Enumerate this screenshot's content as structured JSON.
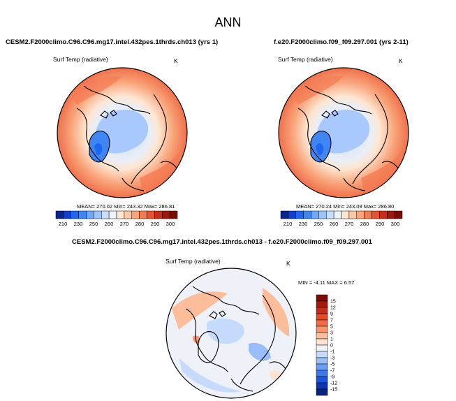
{
  "figure": {
    "title": "ANN",
    "panels": [
      {
        "title": "CESM2.F2000climo.C96.C96.mg17.intel.432pes.1thrds.ch013 (yrs 1)",
        "variable": "Surf Temp (radiative)",
        "units": "K",
        "stats": "MEAN= 270.02  Min= 243.32  Max= 286.81",
        "colorbar": {
          "levels": [
            "210",
            "230",
            "250",
            "260",
            "270",
            "280",
            "290",
            "300"
          ],
          "colors": [
            "#08268f",
            "#0d3fd1",
            "#1f66f0",
            "#3f86f5",
            "#6ea8fa",
            "#9cc6fb",
            "#c8defc",
            "#eef3f8",
            "#fde6d2",
            "#fcc7a4",
            "#f9a47a",
            "#f47a52",
            "#e9522f",
            "#c92d18",
            "#9e160c",
            "#7a0b05"
          ]
        }
      },
      {
        "title": "f.e20.F2000climo.f09_f09.297.001 (yrs 2-11)",
        "variable": "Surf Temp (radiative)",
        "units": "K",
        "stats": "MEAN= 270.24  Min= 243.09  Max= 286.80",
        "colorbar": {
          "levels": [
            "210",
            "230",
            "250",
            "260",
            "270",
            "280",
            "290",
            "300"
          ],
          "colors": [
            "#08268f",
            "#0d3fd1",
            "#1f66f0",
            "#3f86f5",
            "#6ea8fa",
            "#9cc6fb",
            "#c8defc",
            "#eef3f8",
            "#fde6d2",
            "#fcc7a4",
            "#f9a47a",
            "#f47a52",
            "#e9522f",
            "#c92d18",
            "#9e160c",
            "#7a0b05"
          ]
        }
      },
      {
        "title": "CESM2.F2000climo.C96.C96.mg17.intel.432pes.1thrds.ch013 - f.e20.F2000climo.f09_f09.297.001",
        "variable": "Surf Temp (radiative)",
        "units": "K",
        "stats": "MIN = -4.11 MAX = 6.57",
        "colorbar": {
          "levels": [
            "15",
            "12",
            "9",
            "7",
            "5",
            "3",
            "1",
            "0",
            "-1",
            "-3",
            "-5",
            "-7",
            "-9",
            "-12",
            "-15"
          ],
          "colors": [
            "#7a0b05",
            "#a8180d",
            "#c92d18",
            "#e34a2b",
            "#f26b45",
            "#f9956c",
            "#fcbd9a",
            "#fde3d2",
            "#eef2f8",
            "#c6dafb",
            "#98bdf9",
            "#6a9ef5",
            "#3d79ee",
            "#1d55dc",
            "#0b36b7",
            "#062380"
          ]
        }
      }
    ]
  }
}
